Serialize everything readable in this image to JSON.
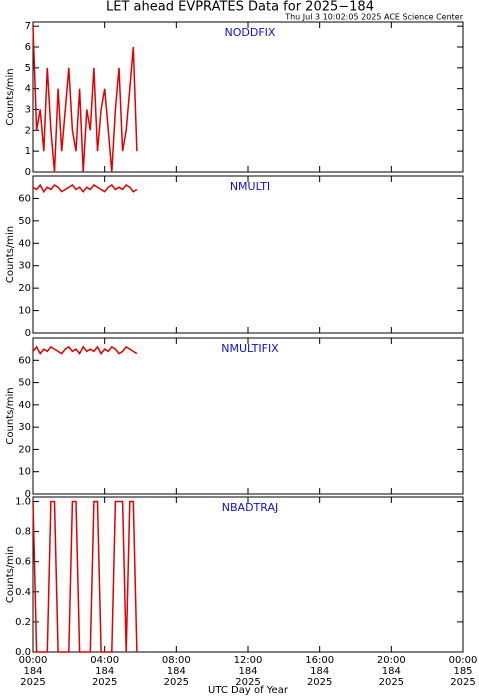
{
  "title": "LET ahead EVPRATES Data for 2025−184",
  "header": "Thu Jul  3 10:02:05 2025 ACE Science Center",
  "xlabel": "UTC Day of Year",
  "chart_data": [
    {
      "type": "line",
      "title": "NODDFIX",
      "ylabel": "Counts/min",
      "xlim": [
        0,
        24
      ],
      "ylim": [
        0,
        7.2
      ],
      "yticks": [
        0,
        1,
        2,
        3,
        4,
        5,
        6,
        7
      ],
      "x": [
        0,
        0.2,
        0.4,
        0.6,
        0.8,
        1,
        1.2,
        1.4,
        1.6,
        1.8,
        2,
        2.2,
        2.4,
        2.6,
        2.8,
        3,
        3.2,
        3.4,
        3.6,
        3.8,
        4,
        4.2,
        4.4,
        4.6,
        4.8,
        5,
        5.2,
        5.4,
        5.6,
        5.8
      ],
      "values": [
        7,
        2,
        3,
        1,
        5,
        2,
        0,
        4,
        1,
        3,
        5,
        2,
        1,
        4,
        0,
        3,
        2,
        5,
        1,
        3,
        4,
        2,
        0,
        3,
        5,
        1,
        2,
        4,
        6,
        1
      ],
      "color": "#e00000"
    },
    {
      "type": "line",
      "title": "NMULTI",
      "ylabel": "Counts/min",
      "xlim": [
        0,
        24
      ],
      "ylim": [
        0,
        70
      ],
      "yticks": [
        0,
        10,
        20,
        30,
        40,
        50,
        60
      ],
      "x": [
        0,
        0.2,
        0.4,
        0.6,
        0.8,
        1,
        1.2,
        1.4,
        1.6,
        1.8,
        2,
        2.2,
        2.4,
        2.6,
        2.8,
        3,
        3.2,
        3.4,
        3.6,
        3.8,
        4,
        4.2,
        4.4,
        4.6,
        4.8,
        5,
        5.2,
        5.4,
        5.6,
        5.8
      ],
      "values": [
        65,
        64,
        66,
        63,
        65,
        64,
        66,
        65,
        63,
        64,
        65,
        66,
        64,
        65,
        63,
        65,
        64,
        66,
        65,
        64,
        63,
        65,
        66,
        64,
        65,
        64,
        66,
        65,
        63,
        64
      ],
      "color": "#e00000"
    },
    {
      "type": "line",
      "title": "NMULTIFIX",
      "ylabel": "Counts/min",
      "xlim": [
        0,
        24
      ],
      "ylim": [
        0,
        70
      ],
      "yticks": [
        0,
        10,
        20,
        30,
        40,
        50,
        60
      ],
      "x": [
        0,
        0.2,
        0.4,
        0.6,
        0.8,
        1,
        1.2,
        1.4,
        1.6,
        1.8,
        2,
        2.2,
        2.4,
        2.6,
        2.8,
        3,
        3.2,
        3.4,
        3.6,
        3.8,
        4,
        4.2,
        4.4,
        4.6,
        4.8,
        5,
        5.2,
        5.4,
        5.6,
        5.8
      ],
      "values": [
        64,
        66,
        63,
        65,
        64,
        66,
        65,
        64,
        63,
        65,
        66,
        64,
        65,
        63,
        66,
        64,
        65,
        64,
        66,
        63,
        65,
        64,
        66,
        65,
        63,
        64,
        66,
        65,
        64,
        63
      ],
      "color": "#e00000"
    },
    {
      "type": "line",
      "title": "NBADTRAJ",
      "ylabel": "Counts/min",
      "xlim": [
        0,
        24
      ],
      "ylim": [
        0,
        1.03
      ],
      "yticks": [
        {
          "value": 0,
          "label": "0.0"
        },
        {
          "value": 0.2,
          "label": "0.2"
        },
        {
          "value": 0.4,
          "label": "0.4"
        },
        {
          "value": 0.6,
          "label": "0.6"
        },
        {
          "value": 0.8,
          "label": "0.8"
        },
        {
          "value": 1,
          "label": "1.0"
        }
      ],
      "x": [
        0,
        0.2,
        0.4,
        0.6,
        0.8,
        1,
        1.2,
        1.4,
        1.6,
        1.8,
        2,
        2.2,
        2.4,
        2.6,
        2.8,
        3,
        3.2,
        3.4,
        3.6,
        3.8,
        4,
        4.2,
        4.4,
        4.6,
        4.8,
        5,
        5.2,
        5.4,
        5.6,
        5.8
      ],
      "values": [
        1,
        0,
        0,
        0,
        0,
        1,
        1,
        0,
        0,
        0,
        0,
        1,
        1,
        0,
        0,
        0,
        0,
        1,
        1,
        0,
        0,
        0,
        0,
        1,
        1,
        1,
        0,
        1,
        1,
        0
      ],
      "color": "#e00000",
      "xticks": [
        {
          "value": 0,
          "label": [
            "00:00",
            "184",
            "2025"
          ]
        },
        {
          "value": 4,
          "label": [
            "04:00",
            "184",
            "2025"
          ]
        },
        {
          "value": 8,
          "label": [
            "08:00",
            "184",
            "2025"
          ]
        },
        {
          "value": 12,
          "label": [
            "12:00",
            "184",
            "2025"
          ]
        },
        {
          "value": 16,
          "label": [
            "16:00",
            "184",
            "2025"
          ]
        },
        {
          "value": 20,
          "label": [
            "20:00",
            "184",
            "2025"
          ]
        },
        {
          "value": 24,
          "label": [
            "00:00",
            "185",
            "2025"
          ]
        }
      ]
    }
  ]
}
